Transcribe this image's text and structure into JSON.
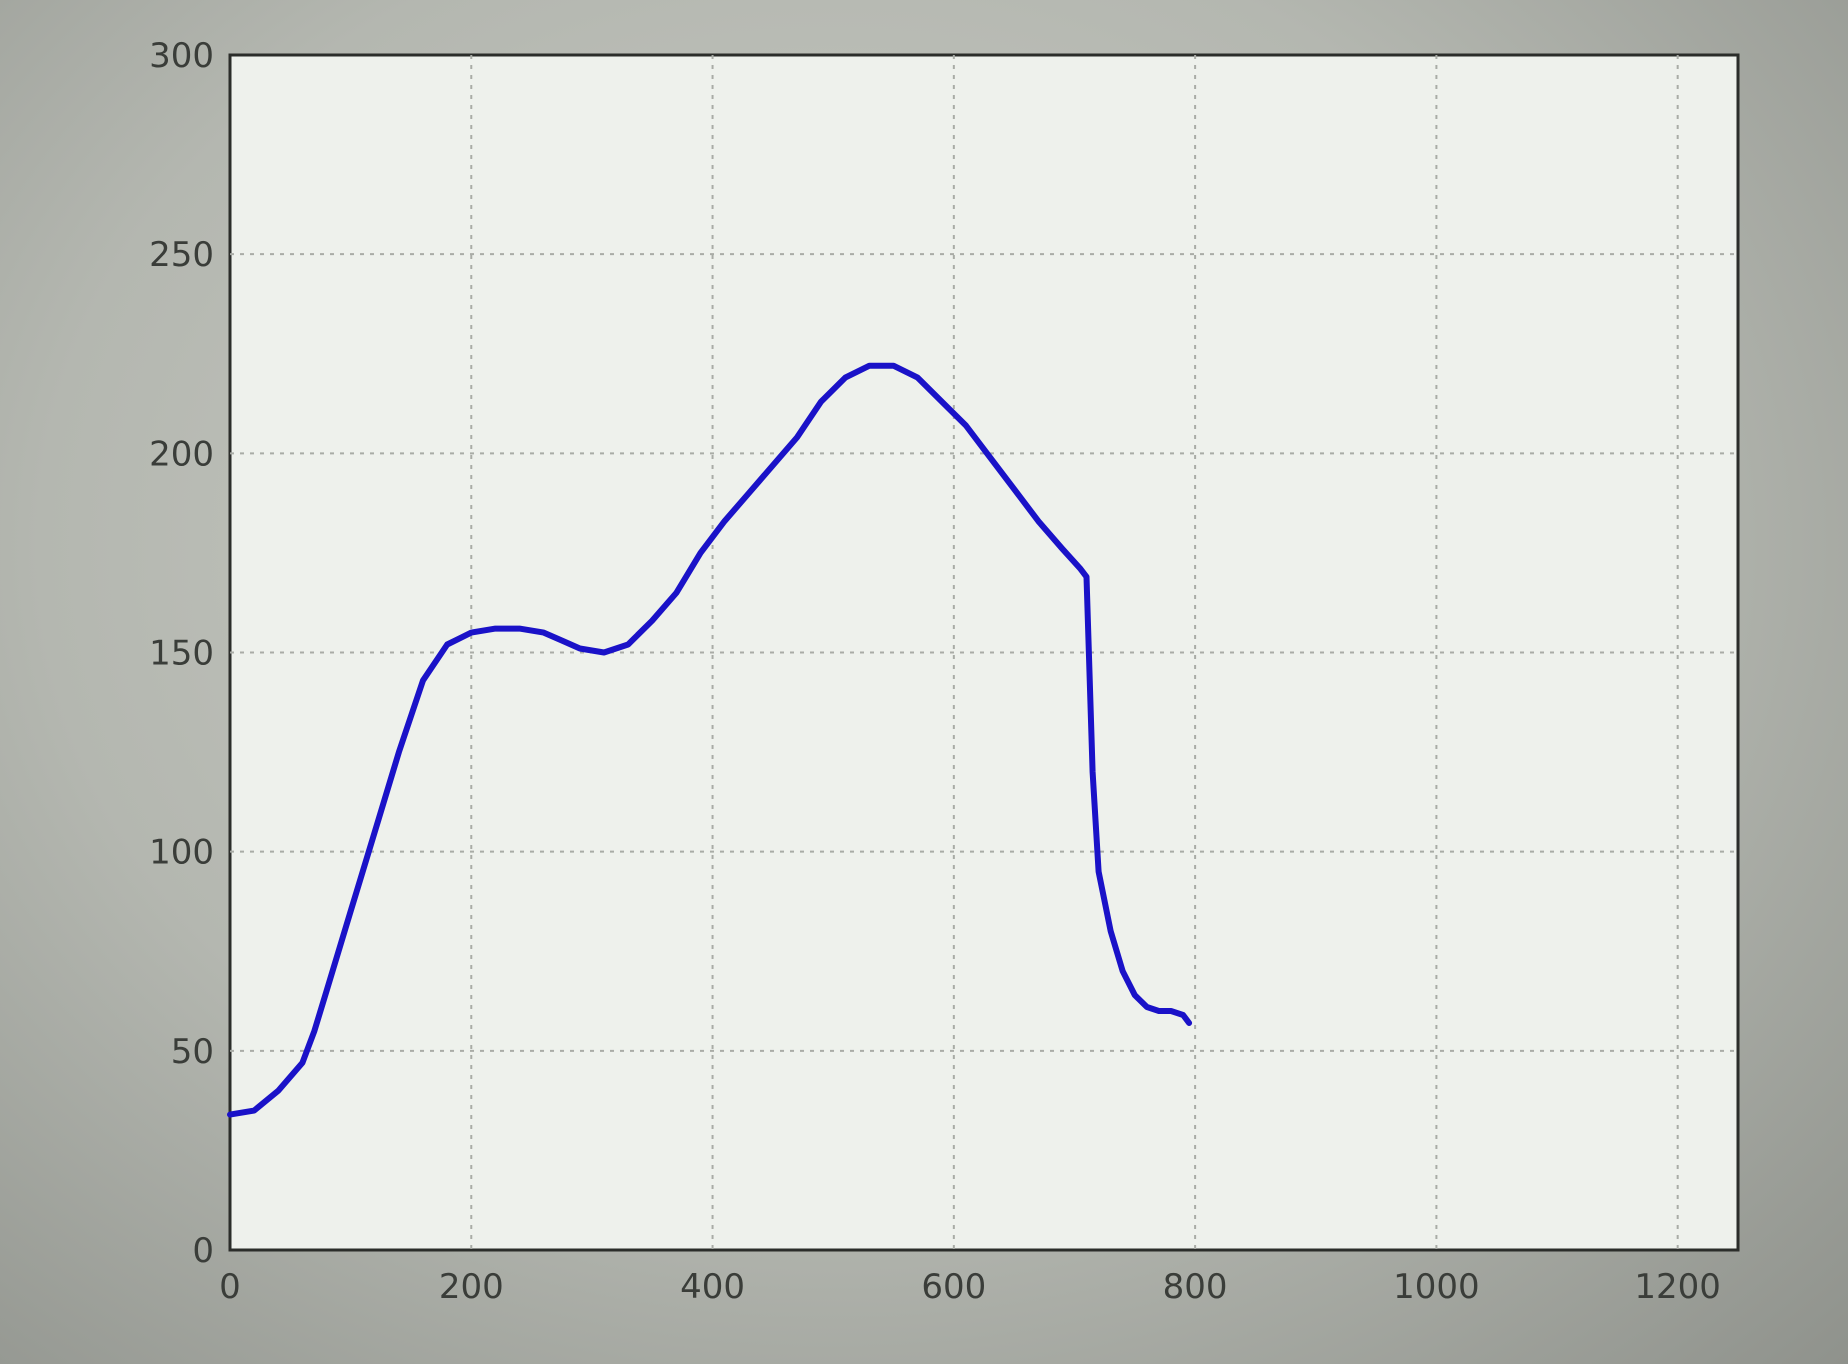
{
  "chart_data": {
    "type": "line",
    "title": "",
    "xlabel": "",
    "ylabel": "",
    "xlim": [
      0,
      1250
    ],
    "ylim": [
      0,
      300
    ],
    "x_ticks": [
      0,
      200,
      400,
      600,
      800,
      1000,
      1200
    ],
    "y_ticks": [
      0,
      50,
      100,
      150,
      200,
      250,
      300
    ],
    "grid": true,
    "line_color": "#1a12c8",
    "series": [
      {
        "x": [
          0,
          20,
          40,
          60,
          70,
          80,
          100,
          120,
          140,
          160,
          180,
          200,
          220,
          240,
          260,
          275,
          290,
          310,
          330,
          350,
          370,
          390,
          410,
          430,
          450,
          470,
          490,
          510,
          530,
          550,
          570,
          590,
          610,
          630,
          650,
          670,
          690,
          705,
          710,
          715,
          720,
          730,
          740,
          750,
          760,
          770,
          780,
          790,
          795
        ],
        "y": [
          34,
          35,
          40,
          47,
          55,
          65,
          85,
          105,
          125,
          143,
          152,
          155,
          156,
          156,
          155,
          153,
          151,
          150,
          152,
          158,
          165,
          175,
          183,
          190,
          197,
          204,
          213,
          219,
          222,
          222,
          219,
          213,
          207,
          199,
          191,
          183,
          176,
          171,
          169,
          120,
          95,
          80,
          70,
          64,
          61,
          60,
          60,
          59,
          57
        ]
      }
    ]
  }
}
